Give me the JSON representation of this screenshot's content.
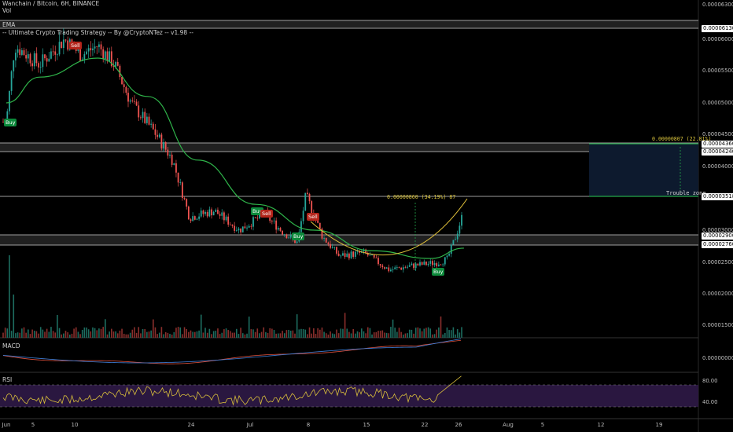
{
  "header": {
    "title": "Wanchain / Bitcoin, 6H, BINANCE",
    "vol_label": "Vol",
    "ema_label": "EMA",
    "strategy_label": "-- Ultimate Crypto Trading Strategy -- By @CryptoNTez -- v1.98 --",
    "macd_label": "MACD",
    "rsi_label": "RSI"
  },
  "price_axis": {
    "labels": [
      "0.00006300",
      "0.00006000",
      "0.00005500",
      "0.00005000",
      "0.00004500",
      "0.00004000",
      "0.00003000",
      "0.00002500",
      "0.00002000",
      "0.00001500",
      "0.00000000",
      "80.00",
      "40.00"
    ],
    "tags": [
      "0.00006130",
      "0.00004360",
      "0.00004240",
      "0.00003518",
      "0.00002900",
      "0.00002760"
    ]
  },
  "time_axis": {
    "labels": [
      "Jun",
      "5",
      "10",
      "24",
      "Jul",
      "8",
      "15",
      "22",
      "26",
      "Aug",
      "5",
      "12",
      "19"
    ]
  },
  "signals": {
    "buy": [
      "Buy",
      "Buy",
      "Buy",
      "Buy"
    ],
    "sell": [
      "Sell",
      "Sell",
      "Sell"
    ]
  },
  "annotations": {
    "measure_1": "0.00000860 (34.19%) 87",
    "measure_2": "0.00000807 (22.81%)",
    "zone_label": "Trouble zone"
  },
  "colors": {
    "background": "#000000",
    "up_candle": "#26a69a",
    "down_candle": "#ef5350",
    "ema_line": "#2fb44a",
    "curve": "#e0c03a",
    "macd_line": "#3d7fd9",
    "signal_line": "#e0513d",
    "rsi_line": "#d7bd3b",
    "rsi_band": "#2a1740",
    "zone_fill": "#0d1a2e",
    "zone_line": "#24a84a"
  },
  "chart_data": {
    "type": "candlestick",
    "title": "Wanchain / Bitcoin, 6H, BINANCE",
    "price_range": [
      1.2e-05,
      6.4e-05
    ],
    "key_levels": [
      6.13e-05,
      4.36e-05,
      4.24e-05,
      3.518e-05,
      2.9e-05,
      2.76e-05
    ],
    "close_path": [
      {
        "date": "Jun 1",
        "close": 4.7e-05
      },
      {
        "date": "Jun 2",
        "close": 5.9e-05
      },
      {
        "date": "Jun 5",
        "close": 5.6e-05
      },
      {
        "date": "Jun 8",
        "close": 6e-05
      },
      {
        "date": "Jun 10",
        "close": 5.75e-05
      },
      {
        "date": "Jun 12",
        "close": 5.9e-05
      },
      {
        "date": "Jun 14",
        "close": 5.6e-05
      },
      {
        "date": "Jun 16",
        "close": 5e-05
      },
      {
        "date": "Jun 19",
        "close": 4.5e-05
      },
      {
        "date": "Jun 21",
        "close": 4.1e-05
      },
      {
        "date": "Jun 23",
        "close": 3.2e-05
      },
      {
        "date": "Jun 26",
        "close": 3.3e-05
      },
      {
        "date": "Jun 29",
        "close": 3e-05
      },
      {
        "date": "Jul 2",
        "close": 3.25e-05
      },
      {
        "date": "Jul 4",
        "close": 3e-05
      },
      {
        "date": "Jul 6",
        "close": 2.8e-05
      },
      {
        "date": "Jul 7",
        "close": 3.55e-05
      },
      {
        "date": "Jul 9",
        "close": 2.9e-05
      },
      {
        "date": "Jul 11",
        "close": 2.6e-05
      },
      {
        "date": "Jul 14",
        "close": 2.65e-05
      },
      {
        "date": "Jul 17",
        "close": 2.38e-05
      },
      {
        "date": "Jul 20",
        "close": 2.45e-05
      },
      {
        "date": "Jul 23",
        "close": 2.5e-05
      },
      {
        "date": "Jul 24",
        "close": 2.55e-05
      },
      {
        "date": "Jul 25",
        "close": 2.9e-05
      },
      {
        "date": "Jul 26",
        "close": 3.3e-05
      }
    ],
    "ema_path": [
      {
        "date": "Jun 1",
        "value": 5e-05
      },
      {
        "date": "Jun 5",
        "value": 5.4e-05
      },
      {
        "date": "Jun 12",
        "value": 5.7e-05
      },
      {
        "date": "Jun 18",
        "value": 5.1e-05
      },
      {
        "date": "Jun 24",
        "value": 4.1e-05
      },
      {
        "date": "Jul 1",
        "value": 3.4e-05
      },
      {
        "date": "Jul 8",
        "value": 3e-05
      },
      {
        "date": "Jul 15",
        "value": 2.68e-05
      },
      {
        "date": "Jul 22",
        "value": 2.56e-05
      },
      {
        "date": "Jul 26",
        "value": 2.72e-05
      }
    ]
  }
}
